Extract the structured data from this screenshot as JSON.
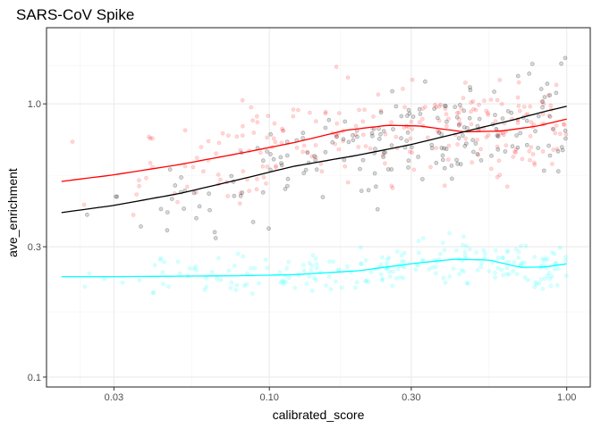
{
  "chart_data": {
    "type": "scatter",
    "title": "SARS-CoV Spike",
    "xlabel": "calibrated_score",
    "ylabel": "ave_enrichment",
    "x_scale": "log10",
    "y_scale": "log10",
    "xlim": [
      0.0178,
      1.2
    ],
    "ylim": [
      0.092,
      1.9
    ],
    "x_ticks": [
      {
        "value": 0.03,
        "label": "0.03"
      },
      {
        "value": 0.1,
        "label": "0.10"
      },
      {
        "value": 0.3,
        "label": "0.30"
      },
      {
        "value": 1.0,
        "label": "1.00"
      }
    ],
    "y_ticks": [
      {
        "value": 0.1,
        "label": "0.1"
      },
      {
        "value": 0.3,
        "label": "0.3"
      },
      {
        "value": 1.0,
        "label": "1.0"
      }
    ],
    "grid": true,
    "legend": "none",
    "series": [
      {
        "color": "#00FFFF",
        "point_alpha": 0.15,
        "smooth": [
          [
            0.02,
            0.233
          ],
          [
            0.03,
            0.233
          ],
          [
            0.05,
            0.234
          ],
          [
            0.08,
            0.235
          ],
          [
            0.12,
            0.237
          ],
          [
            0.2,
            0.245
          ],
          [
            0.3,
            0.26
          ],
          [
            0.42,
            0.27
          ],
          [
            0.55,
            0.268
          ],
          [
            0.7,
            0.252
          ],
          [
            0.85,
            0.253
          ],
          [
            1.0,
            0.26
          ]
        ],
        "y_range": [
          0.19,
          0.34
        ],
        "n_points": 230
      },
      {
        "color": "#FF0000",
        "point_alpha": 0.15,
        "smooth": [
          [
            0.02,
            0.52
          ],
          [
            0.03,
            0.55
          ],
          [
            0.05,
            0.6
          ],
          [
            0.08,
            0.66
          ],
          [
            0.12,
            0.72
          ],
          [
            0.18,
            0.8
          ],
          [
            0.25,
            0.835
          ],
          [
            0.32,
            0.83
          ],
          [
            0.45,
            0.79
          ],
          [
            0.6,
            0.795
          ],
          [
            0.8,
            0.83
          ],
          [
            1.0,
            0.88
          ]
        ],
        "y_range": [
          0.3,
          1.55
        ],
        "n_points": 250
      },
      {
        "color": "#000000",
        "point_alpha": 0.15,
        "smooth": [
          [
            0.02,
            0.4
          ],
          [
            0.03,
            0.425
          ],
          [
            0.05,
            0.47
          ],
          [
            0.08,
            0.53
          ],
          [
            0.12,
            0.59
          ],
          [
            0.2,
            0.65
          ],
          [
            0.3,
            0.71
          ],
          [
            0.45,
            0.79
          ],
          [
            0.65,
            0.87
          ],
          [
            0.85,
            0.94
          ],
          [
            1.0,
            0.98
          ]
        ],
        "y_range": [
          0.3,
          1.65
        ],
        "n_points": 200
      }
    ]
  }
}
